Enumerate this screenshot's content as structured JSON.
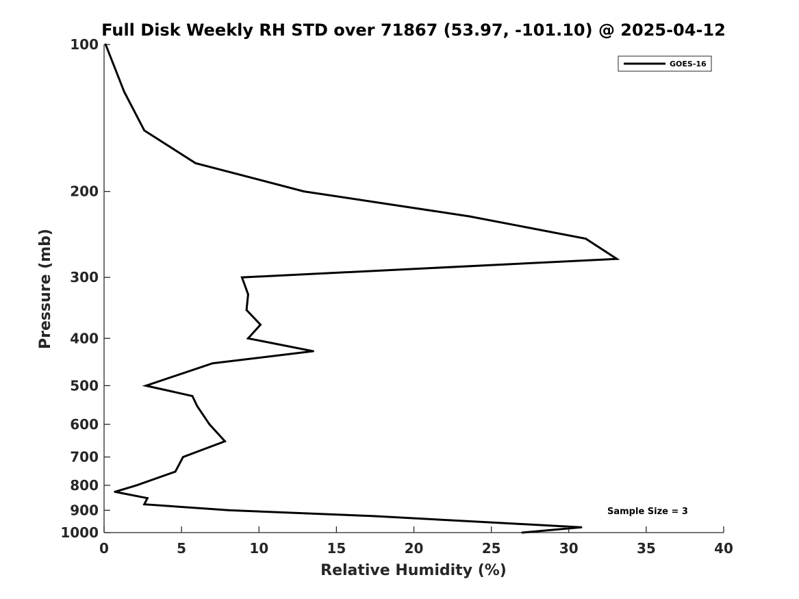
{
  "chart_data": {
    "type": "line",
    "title": "Full Disk Weekly RH STD over 71867 (53.97, -101.10) @ 2025-04-12",
    "xlabel": "Relative Humidity (%)",
    "ylabel": "Pressure (mb)",
    "xlim": [
      0,
      40
    ],
    "ylim": [
      100,
      1000
    ],
    "y_scale": "log",
    "y_direction": "reversed",
    "xticks": [
      0,
      5,
      10,
      15,
      20,
      25,
      30,
      35,
      40
    ],
    "yticks": [
      100,
      200,
      300,
      400,
      500,
      600,
      700,
      800,
      900,
      1000
    ],
    "legend_position": "top-right",
    "grid": false,
    "annotation": "Sample Size = 3",
    "series": [
      {
        "name": "GOES-16",
        "color": "#000000",
        "points": [
          {
            "x": 0.1,
            "y": 100
          },
          {
            "x": 1.3,
            "y": 125
          },
          {
            "x": 2.6,
            "y": 150
          },
          {
            "x": 5.9,
            "y": 175
          },
          {
            "x": 12.9,
            "y": 200
          },
          {
            "x": 23.6,
            "y": 225
          },
          {
            "x": 31.1,
            "y": 250
          },
          {
            "x": 33.1,
            "y": 275
          },
          {
            "x": 8.9,
            "y": 300
          },
          {
            "x": 9.3,
            "y": 325
          },
          {
            "x": 9.2,
            "y": 350
          },
          {
            "x": 10.1,
            "y": 375
          },
          {
            "x": 9.3,
            "y": 400
          },
          {
            "x": 13.5,
            "y": 425
          },
          {
            "x": 7.0,
            "y": 450
          },
          {
            "x": 2.7,
            "y": 500
          },
          {
            "x": 5.7,
            "y": 525
          },
          {
            "x": 6.0,
            "y": 550
          },
          {
            "x": 6.8,
            "y": 600
          },
          {
            "x": 7.8,
            "y": 650
          },
          {
            "x": 5.1,
            "y": 700
          },
          {
            "x": 4.6,
            "y": 750
          },
          {
            "x": 2.1,
            "y": 800
          },
          {
            "x": 0.7,
            "y": 825
          },
          {
            "x": 2.8,
            "y": 850
          },
          {
            "x": 2.6,
            "y": 875
          },
          {
            "x": 8.1,
            "y": 900
          },
          {
            "x": 17.4,
            "y": 925
          },
          {
            "x": 30.8,
            "y": 975
          },
          {
            "x": 27.0,
            "y": 1000
          }
        ]
      }
    ]
  }
}
